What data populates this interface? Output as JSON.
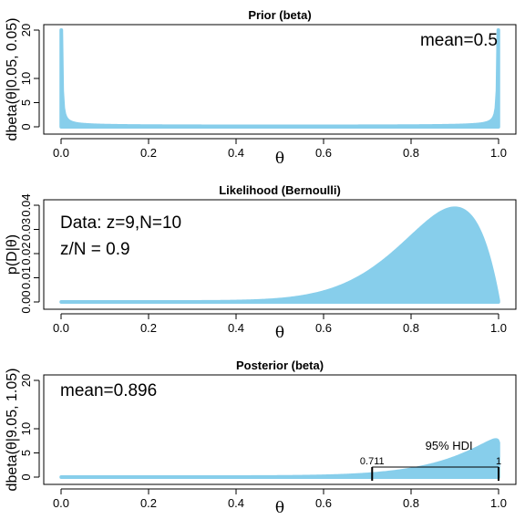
{
  "colors": {
    "fill": "#87CEEB",
    "axis": "#000000",
    "hdi": "#000000"
  },
  "chart_data": [
    {
      "type": "area",
      "title": "Prior (beta)",
      "xlabel": "θ",
      "ylabel": "dbeta(θ|0.05, 0.05)",
      "xlim": [
        0,
        1
      ],
      "ylim": [
        0,
        20
      ],
      "xticks": [
        "0.0",
        "0.2",
        "0.4",
        "0.6",
        "0.8",
        "1.0"
      ],
      "yticks": [
        "0",
        "5",
        "10",
        "20"
      ],
      "distribution": {
        "family": "beta",
        "a": 0.05,
        "b": 0.05
      },
      "annotations": [
        "mean=0.5"
      ]
    },
    {
      "type": "area",
      "title": "Likelihood (Bernoulli)",
      "xlabel": "θ",
      "ylabel": "p(D|θ)",
      "xlim": [
        0,
        1
      ],
      "ylim": [
        0,
        0.04
      ],
      "xticks": [
        "0.0",
        "0.2",
        "0.4",
        "0.6",
        "0.8",
        "1.0"
      ],
      "yticks": [
        "0.00",
        "0.01",
        "0.02",
        "0.03",
        "0.04"
      ],
      "distribution": {
        "family": "bernoulli_likelihood",
        "z": 9,
        "N": 10
      },
      "annotations": [
        "Data: z=9,N=10",
        "z/N = 0.9"
      ]
    },
    {
      "type": "area",
      "title": "Posterior (beta)",
      "xlabel": "θ",
      "ylabel": "dbeta(θ|9.05, 1.05)",
      "xlim": [
        0,
        1
      ],
      "ylim": [
        0,
        20
      ],
      "xticks": [
        "0.0",
        "0.2",
        "0.4",
        "0.6",
        "0.8",
        "1.0"
      ],
      "yticks": [
        "0",
        "5",
        "10",
        "20"
      ],
      "distribution": {
        "family": "beta",
        "a": 9.05,
        "b": 1.05
      },
      "annotations": [
        "mean=0.896"
      ],
      "hdi": {
        "label": "95% HDI",
        "low": 0.711,
        "high": 1,
        "low_label": "0.711",
        "high_label": "1"
      }
    }
  ]
}
